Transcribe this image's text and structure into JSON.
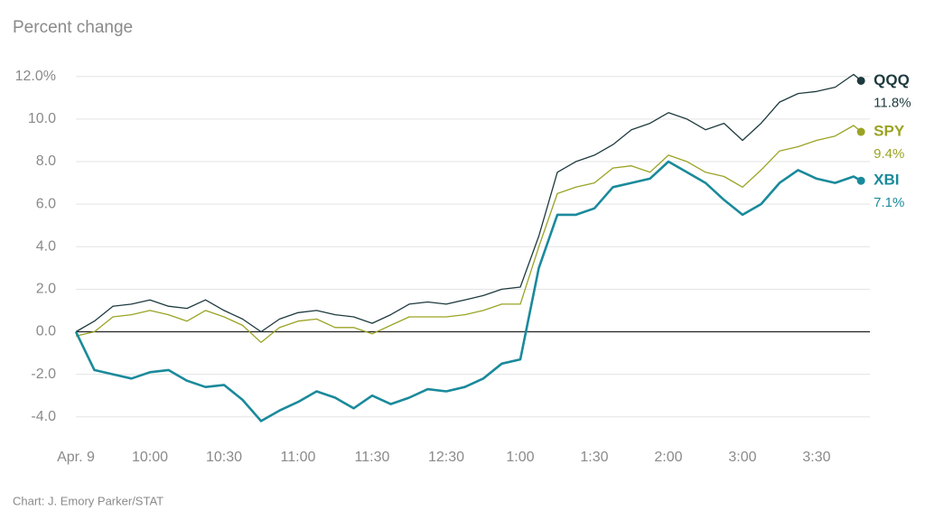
{
  "chart_data": {
    "type": "line",
    "y_label": "Percent change",
    "source": "Chart: J. Emory Parker/STAT",
    "x": [
      0,
      0.25,
      0.5,
      0.75,
      1,
      1.25,
      1.5,
      1.75,
      2,
      2.25,
      2.5,
      2.75,
      3,
      3.25,
      3.5,
      3.75,
      4,
      4.25,
      4.5,
      4.75,
      5,
      5.25,
      5.5,
      5.75,
      6,
      6.25,
      6.5,
      6.75,
      7,
      7.25,
      7.5,
      7.75,
      8,
      8.25,
      8.5,
      8.75,
      9,
      9.25,
      9.5,
      9.75,
      10,
      10.25,
      10.5,
      10.6
    ],
    "xlim": [
      0,
      10.72
    ],
    "xticks": [
      {
        "value": 0,
        "label": "Apr. 9"
      },
      {
        "value": 1,
        "label": "10:00"
      },
      {
        "value": 2,
        "label": "10:30"
      },
      {
        "value": 3,
        "label": "11:00"
      },
      {
        "value": 4,
        "label": "11:30"
      },
      {
        "value": 5,
        "label": "12:30"
      },
      {
        "value": 6,
        "label": "1:00"
      },
      {
        "value": 7,
        "label": "1:30"
      },
      {
        "value": 8,
        "label": "2:00"
      },
      {
        "value": 9,
        "label": "3:00"
      },
      {
        "value": 10,
        "label": "3:30"
      }
    ],
    "ylim": [
      -5.2,
      12.5
    ],
    "yticks": [
      {
        "value": -4,
        "label": "-4.0"
      },
      {
        "value": -2,
        "label": "-2.0"
      },
      {
        "value": 0,
        "label": "0.0"
      },
      {
        "value": 2,
        "label": "2.0"
      },
      {
        "value": 4,
        "label": "4.0"
      },
      {
        "value": 6,
        "label": "6.0"
      },
      {
        "value": 8,
        "label": "8.0"
      },
      {
        "value": 10,
        "label": "10.0"
      },
      {
        "value": 12,
        "label": "12.0%"
      }
    ],
    "grid": true,
    "series": [
      {
        "name": "QQQ",
        "color": "#1e3a3e",
        "values": [
          0,
          0.5,
          1.2,
          1.3,
          1.5,
          1.2,
          1.1,
          1.5,
          1.0,
          0.6,
          0.0,
          0.6,
          0.9,
          1.0,
          0.8,
          0.7,
          0.4,
          0.8,
          1.3,
          1.4,
          1.3,
          1.5,
          1.7,
          2.0,
          2.1,
          4.5,
          7.5,
          8.0,
          8.3,
          8.8,
          9.5,
          9.8,
          10.3,
          10.0,
          9.5,
          9.8,
          9.0,
          9.8,
          10.8,
          11.2,
          11.3,
          11.5,
          12.1,
          11.8
        ],
        "value_labels": [
          null,
          null,
          null,
          null,
          null,
          null,
          null,
          null,
          null,
          null,
          null,
          null,
          null,
          null,
          null,
          null,
          null,
          null,
          null,
          null,
          null,
          null,
          null,
          null,
          null,
          null,
          null,
          null,
          null,
          null,
          null,
          null,
          null,
          null,
          null,
          null,
          null,
          null,
          null,
          null,
          null,
          null,
          null,
          "11.8%"
        ]
      },
      {
        "name": "SPY",
        "color": "#9aa324",
        "values": [
          -0.2,
          0.0,
          0.7,
          0.8,
          1.0,
          0.8,
          0.5,
          1.0,
          0.7,
          0.3,
          -0.5,
          0.2,
          0.5,
          0.6,
          0.2,
          0.2,
          -0.1,
          0.3,
          0.7,
          0.7,
          0.7,
          0.8,
          1.0,
          1.3,
          1.3,
          4.0,
          6.5,
          6.8,
          7.0,
          7.7,
          7.8,
          7.5,
          8.3,
          8.0,
          7.5,
          7.3,
          6.8,
          7.6,
          8.5,
          8.7,
          9.0,
          9.2,
          9.7,
          9.4
        ],
        "value_labels": [
          null,
          null,
          null,
          null,
          null,
          null,
          null,
          null,
          null,
          null,
          null,
          null,
          null,
          null,
          null,
          null,
          null,
          null,
          null,
          null,
          null,
          null,
          null,
          null,
          null,
          null,
          null,
          null,
          null,
          null,
          null,
          null,
          null,
          null,
          null,
          null,
          null,
          null,
          null,
          null,
          null,
          null,
          null,
          "9.4%"
        ]
      },
      {
        "name": "XBI",
        "color": "#1a8a9b",
        "values": [
          0.0,
          -1.8,
          -2.0,
          -2.2,
          -1.9,
          -1.8,
          -2.3,
          -2.6,
          -2.5,
          -3.2,
          -4.2,
          -3.7,
          -3.3,
          -2.8,
          -3.1,
          -3.6,
          -3.0,
          -3.4,
          -3.1,
          -2.7,
          -2.8,
          -2.6,
          -2.2,
          -1.5,
          -1.3,
          3.0,
          5.5,
          5.5,
          5.8,
          6.8,
          7.0,
          7.2,
          8.0,
          7.5,
          7.0,
          6.2,
          5.5,
          6.0,
          7.0,
          7.6,
          7.2,
          7.0,
          7.3,
          7.1
        ],
        "value_labels": [
          null,
          null,
          null,
          null,
          null,
          null,
          null,
          null,
          null,
          null,
          null,
          null,
          null,
          null,
          null,
          null,
          null,
          null,
          null,
          null,
          null,
          null,
          null,
          null,
          null,
          null,
          null,
          null,
          null,
          null,
          null,
          null,
          null,
          null,
          null,
          null,
          null,
          null,
          null,
          null,
          null,
          null,
          null,
          "7.1%"
        ]
      }
    ]
  }
}
